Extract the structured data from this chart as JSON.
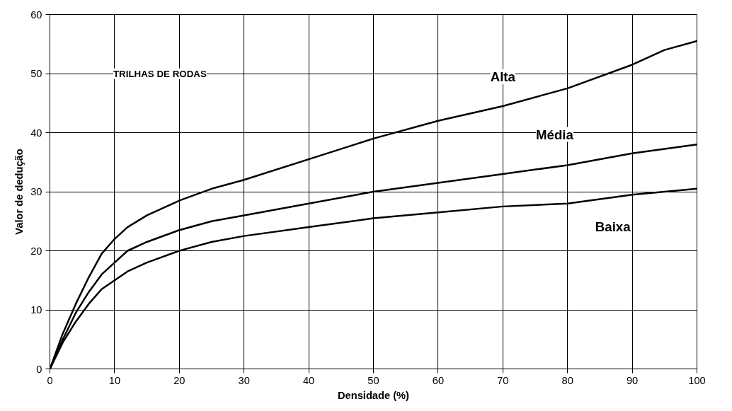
{
  "chart_data": {
    "type": "line",
    "xlabel": "Densidade (%)",
    "ylabel": "Valor de dedução",
    "xlim": [
      0,
      100
    ],
    "ylim": [
      0,
      60
    ],
    "xticks": [
      0,
      10,
      20,
      30,
      40,
      50,
      60,
      70,
      80,
      90,
      100
    ],
    "yticks": [
      0,
      10,
      20,
      30,
      40,
      50,
      60
    ],
    "grid": true,
    "marker": "none",
    "line_style": "solid",
    "annotations": [
      "TRILHAS DE RODAS"
    ],
    "series": [
      {
        "name": "Alta",
        "color": "#000000",
        "x": [
          0,
          2,
          4,
          6,
          8,
          10,
          12,
          15,
          20,
          25,
          30,
          40,
          50,
          60,
          70,
          80,
          90,
          95,
          100
        ],
        "values": [
          0,
          6,
          11,
          15.5,
          19.5,
          22,
          24,
          26,
          28.5,
          30.5,
          32,
          35.5,
          39,
          42,
          44.5,
          47.5,
          51.5,
          54,
          55.5
        ]
      },
      {
        "name": "Média",
        "color": "#000000",
        "x": [
          0,
          2,
          4,
          6,
          8,
          10,
          12,
          15,
          20,
          25,
          30,
          40,
          50,
          60,
          70,
          80,
          90,
          100
        ],
        "values": [
          0,
          5,
          9.5,
          13,
          16,
          18,
          20,
          21.5,
          23.5,
          25,
          26,
          28,
          30,
          31.5,
          33,
          34.5,
          36.5,
          38
        ]
      },
      {
        "name": "Baixa",
        "color": "#000000",
        "x": [
          0,
          2,
          4,
          6,
          8,
          10,
          12,
          15,
          20,
          25,
          30,
          40,
          50,
          60,
          70,
          80,
          90,
          100
        ],
        "values": [
          0,
          4.5,
          8,
          11,
          13.5,
          15,
          16.5,
          18,
          20,
          21.5,
          22.5,
          24,
          25.5,
          26.5,
          27.5,
          28,
          29.5,
          30.5
        ]
      }
    ]
  }
}
